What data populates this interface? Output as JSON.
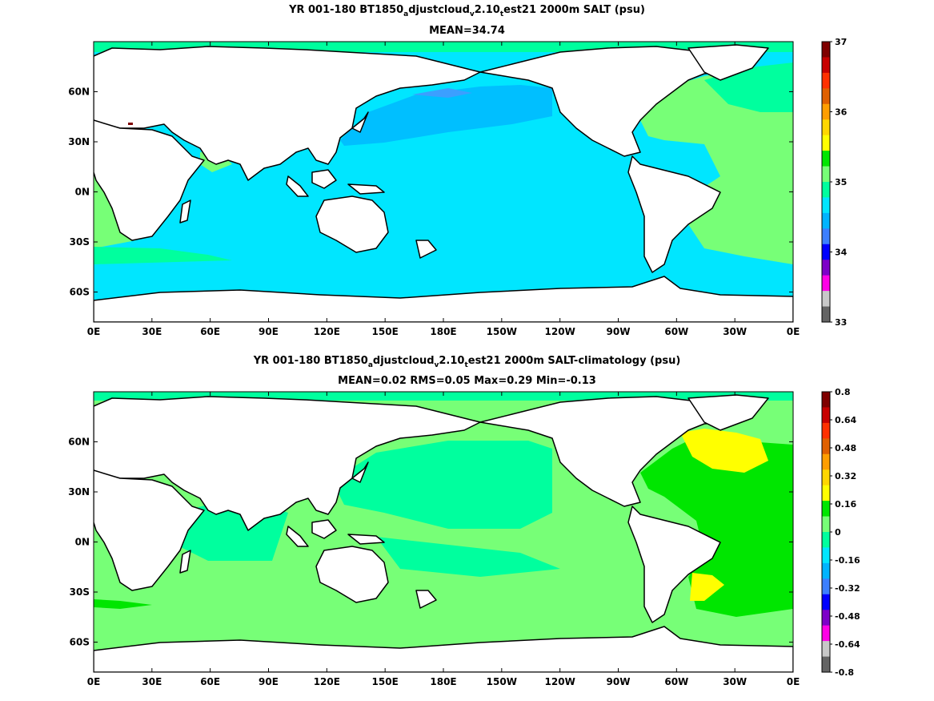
{
  "panels": [
    {
      "title_pre": "YR 001-180 BT1850",
      "title_sub1": "a",
      "title_mid": "djustcloud",
      "title_sub2": "v",
      "title_mid2": "2.10",
      "title_sub3": "t",
      "title_post": "est21 2000m SALT (psu)",
      "subtitle": "MEAN=34.74",
      "colorbar_ticks": [
        "37",
        "36",
        "35",
        "34",
        "33"
      ],
      "colorbar_colors": [
        "#7f0000",
        "#c80000",
        "#ff3000",
        "#e06000",
        "#ff9e00",
        "#ffd700",
        "#ffff00",
        "#00e600",
        "#77ff77",
        "#00ff9e",
        "#00e6ff",
        "#00b4ff",
        "#3c7fff",
        "#0000ff",
        "#7d00c8",
        "#ff00e6",
        "#c8c8c8",
        "#646464"
      ]
    },
    {
      "title_pre": "YR 001-180 BT1850",
      "title_sub1": "a",
      "title_mid": "djustcloud",
      "title_sub2": "v",
      "title_mid2": "2.10",
      "title_sub3": "t",
      "title_post": "est21 2000m SALT-climatology (psu)",
      "subtitle": "MEAN=0.02   RMS=0.05   Max=0.29   Min=-0.13",
      "colorbar_ticks": [
        "0.8",
        "0.64",
        "0.48",
        "0.32",
        "0.16",
        "0",
        "-0.16",
        "-0.32",
        "-0.48",
        "-0.64",
        "-0.8"
      ],
      "colorbar_colors": [
        "#7f0000",
        "#c80000",
        "#ff3000",
        "#e06000",
        "#ff9e00",
        "#ffd700",
        "#ffff00",
        "#00e600",
        "#77ff77",
        "#00ff9e",
        "#00e6ff",
        "#00b4ff",
        "#3c7fff",
        "#0000ff",
        "#7d00c8",
        "#ff00e6",
        "#c8c8c8",
        "#646464"
      ]
    }
  ],
  "axes": {
    "x_ticks": [
      "0E",
      "30E",
      "60E",
      "90E",
      "120E",
      "150E",
      "180E",
      "150W",
      "120W",
      "90W",
      "60W",
      "30W",
      "0E"
    ],
    "y_ticks": [
      "60N",
      "30N",
      "0N",
      "30S",
      "60S"
    ],
    "y_tick_lats": [
      60,
      30,
      0,
      -30,
      -60
    ],
    "lat_range": [
      -78,
      90
    ]
  },
  "colors": {
    "ocean_top": "#00e6ff",
    "ocean_top_pacific_north": "#00bfff",
    "ocean_top_atlantic": "#77ff77",
    "ocean_top_atlantic_north": "#00ff9e",
    "ocean_bottom": "#77ff77",
    "ocean_bottom_alt": "#00ff9e",
    "ocean_bottom_atlantic": "#00e600",
    "ocean_bottom_high": "#ffff00",
    "land": "#ffffff"
  }
}
